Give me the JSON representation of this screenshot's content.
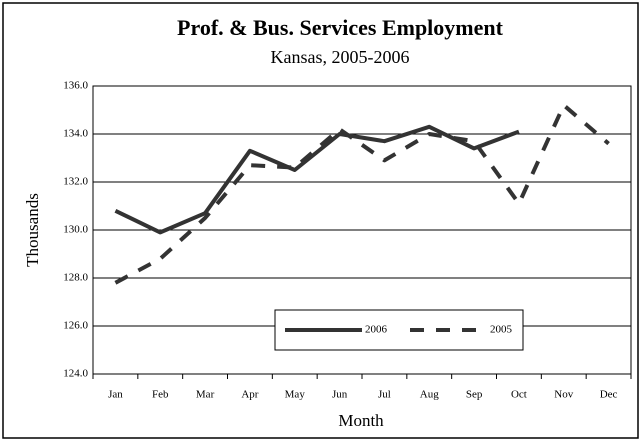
{
  "chart_data": {
    "type": "line",
    "title": "Prof. & Bus. Services Employment",
    "subtitle": "Kansas, 2005-2006",
    "y_label": "Thousands",
    "x_label": "Month",
    "categories": [
      "Jan",
      "Feb",
      "Mar",
      "Apr",
      "May",
      "Jun",
      "Jul",
      "Aug",
      "Sep",
      "Oct",
      "Nov",
      "Dec"
    ],
    "series": [
      {
        "name": "2006",
        "color": "#333333",
        "dash": "solid",
        "values": [
          130.8,
          129.9,
          130.7,
          133.3,
          132.5,
          134.0,
          133.7,
          134.3,
          133.4,
          134.1,
          null,
          null
        ]
      },
      {
        "name": "2005",
        "color": "#333333",
        "dash": "dashed",
        "values": [
          127.8,
          128.8,
          130.5,
          132.7,
          132.6,
          134.2,
          132.9,
          134.0,
          133.7,
          131.1,
          135.2,
          133.6
        ]
      }
    ],
    "ylim": [
      124,
      136
    ],
    "yticks": [
      {
        "value": 124,
        "label": "124.0"
      },
      {
        "value": 126,
        "label": "126.0"
      },
      {
        "value": 128,
        "label": "128.0"
      },
      {
        "value": 130,
        "label": "130.0"
      },
      {
        "value": 132,
        "label": "132.0"
      },
      {
        "value": 134,
        "label": "134.0"
      },
      {
        "value": 136,
        "label": "136.0"
      }
    ],
    "grid": true,
    "legend": "lower center"
  }
}
